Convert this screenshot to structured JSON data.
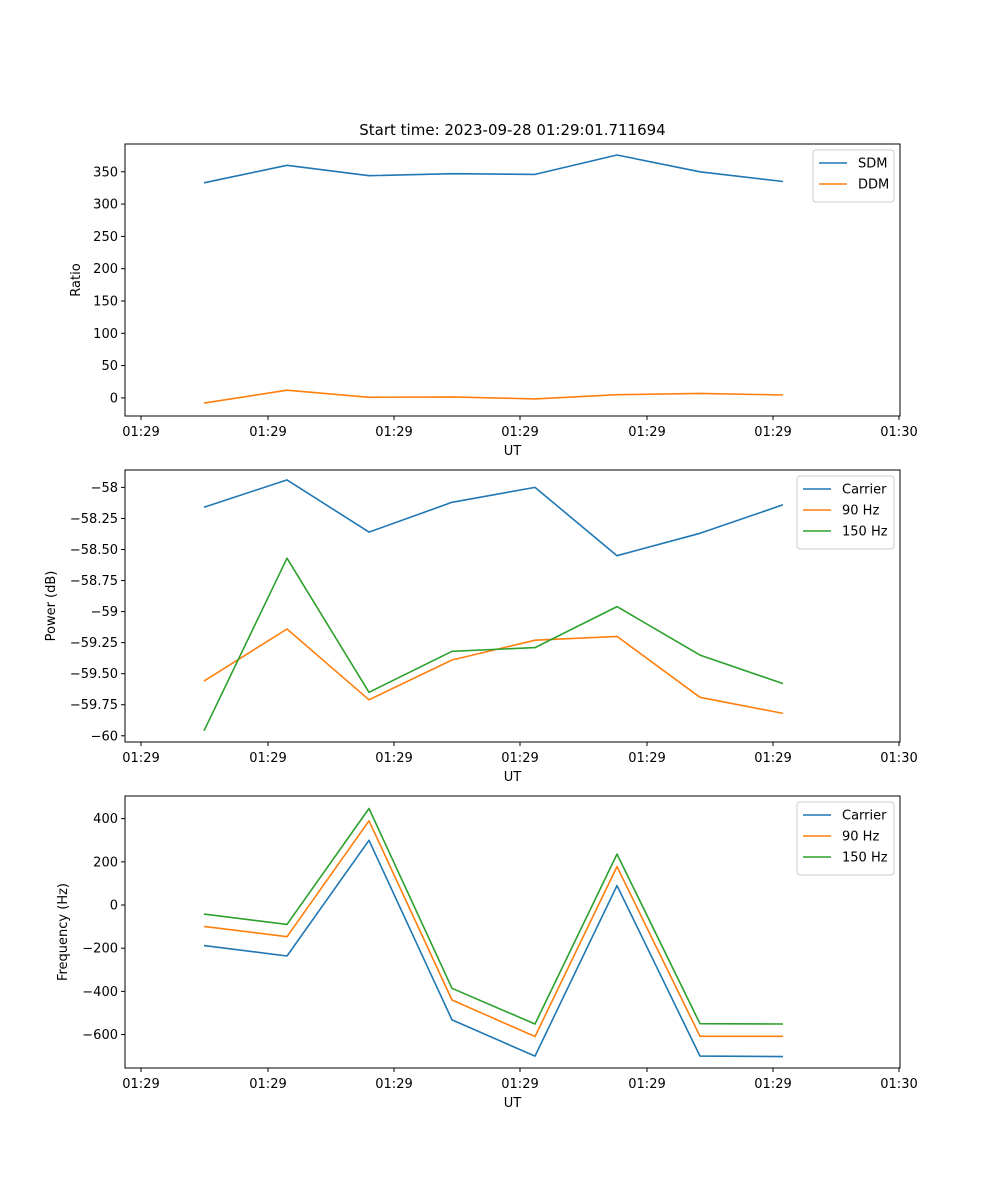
{
  "title": "Start time: 2023-09-28 01:29:01.711694",
  "x_tick_labels": [
    "01:29",
    "01:29",
    "01:29",
    "01:29",
    "01:29",
    "01:29",
    "01:30"
  ],
  "chart_data": [
    {
      "type": "line",
      "title": "Start time: 2023-09-28 01:29:01.711694",
      "xlabel": "UT",
      "ylabel": "Ratio",
      "x": [
        1,
        2,
        3,
        4,
        5,
        6,
        7,
        8
      ],
      "ylim": [
        -28,
        393
      ],
      "yticks": [
        0,
        50,
        100,
        150,
        200,
        250,
        300,
        350
      ],
      "legend": "top-right",
      "grid": false,
      "series": [
        {
          "name": "SDM",
          "color": "#1f77b4",
          "values": [
            333,
            360,
            344,
            347,
            346,
            376,
            350,
            335
          ]
        },
        {
          "name": "DDM",
          "color": "#ff7f0e",
          "values": [
            -8,
            12,
            1,
            1.5,
            -1.5,
            5,
            7,
            4.5
          ]
        }
      ]
    },
    {
      "type": "line",
      "xlabel": "UT",
      "ylabel": "Power (dB)",
      "x": [
        1,
        2,
        3,
        4,
        5,
        6,
        7,
        8
      ],
      "ylim": [
        -60.05,
        -57.86
      ],
      "yticks": [
        -60.0,
        -59.75,
        -59.5,
        -59.25,
        -59.0,
        -58.75,
        -58.5,
        -58.25,
        -58.0
      ],
      "legend": "top-right",
      "grid": false,
      "series": [
        {
          "name": "Carrier",
          "color": "#1f77b4",
          "values": [
            -58.16,
            -57.94,
            -58.36,
            -58.12,
            -58.0,
            -58.55,
            -58.37,
            -58.14
          ]
        },
        {
          "name": "90 Hz",
          "color": "#ff7f0e",
          "values": [
            -59.56,
            -59.14,
            -59.71,
            -59.39,
            -59.23,
            -59.2,
            -59.69,
            -59.82
          ]
        },
        {
          "name": "150 Hz",
          "color": "#2ca02c",
          "values": [
            -59.96,
            -58.57,
            -59.65,
            -59.32,
            -59.29,
            -58.96,
            -59.35,
            -59.58
          ]
        }
      ]
    },
    {
      "type": "line",
      "xlabel": "UT",
      "ylabel": "Frequency (Hz)",
      "x": [
        1,
        2,
        3,
        4,
        5,
        6,
        7,
        8
      ],
      "ylim": [
        -755,
        505
      ],
      "yticks": [
        -600,
        -400,
        -200,
        0,
        200,
        400
      ],
      "legend": "top-right",
      "grid": false,
      "series": [
        {
          "name": "Carrier",
          "color": "#1f77b4",
          "values": [
            -188,
            -236,
            300,
            -532,
            -700,
            90,
            -700,
            -702
          ]
        },
        {
          "name": "90 Hz",
          "color": "#ff7f0e",
          "values": [
            -99,
            -147,
            390,
            -440,
            -609,
            178,
            -608,
            -608
          ]
        },
        {
          "name": "150 Hz",
          "color": "#2ca02c",
          "values": [
            -42,
            -90,
            447,
            -386,
            -551,
            236,
            -550,
            -551
          ]
        }
      ]
    }
  ]
}
